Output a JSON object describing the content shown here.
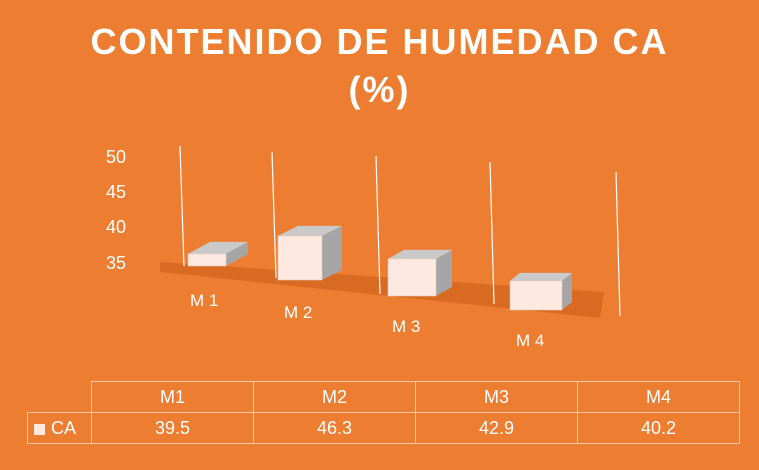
{
  "chart_data": {
    "type": "bar",
    "title_line1": "CONTENIDO DE HUMEDAD CA",
    "title_line2": "(%)",
    "categories": [
      "M 1",
      "M 2",
      "M 3",
      "M 4"
    ],
    "series": [
      {
        "name": "CA",
        "values": [
          39.5,
          46.3,
          42.9,
          40.2
        ]
      }
    ],
    "ylim": [
      35,
      50
    ],
    "yticks": [
      "50",
      "45",
      "40",
      "35"
    ],
    "table": {
      "headers": [
        "M1",
        "M2",
        "M3",
        "M4"
      ],
      "row_label": "CA",
      "values": [
        "39.5",
        "46.3",
        "42.9",
        "40.2"
      ]
    },
    "colors": {
      "background": "#ED7D31",
      "bar_front": "#FDE9E0",
      "bar_side": "#A5A5A5",
      "bar_top": "#C9C9C9",
      "floor": "#D86A22"
    }
  }
}
